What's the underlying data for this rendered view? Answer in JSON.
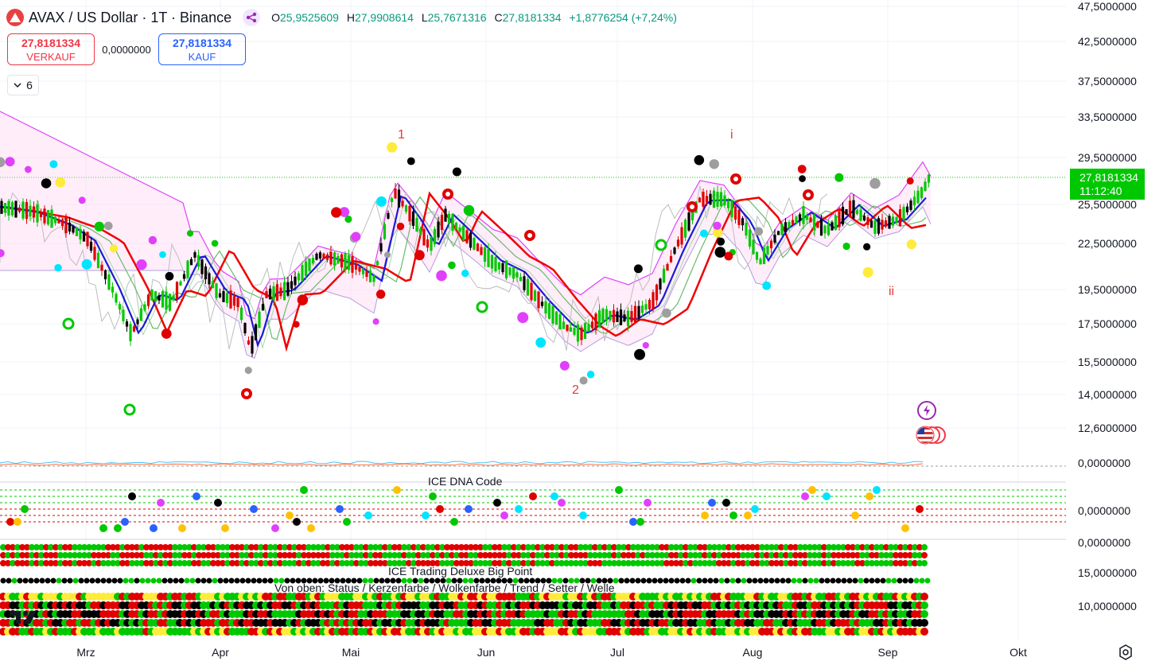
{
  "header": {
    "title": "AVAX / US Dollar · 1T · Binance",
    "ohlc": {
      "o_label": "O",
      "o": "25,9525609",
      "h_label": "H",
      "h": "27,9908614",
      "l_label": "L",
      "l": "25,7671316",
      "c_label": "C",
      "c": "27,8181334",
      "change": "+1,8776254 (+7,24%)"
    }
  },
  "trade": {
    "sell_price": "27,8181334",
    "sell_label": "VERKAUF",
    "spread": "0,0000000",
    "buy_price": "27,8181334",
    "buy_label": "KAUF"
  },
  "indicators_toggle": {
    "count": "6"
  },
  "price_axis": {
    "labels": [
      "47,5000000",
      "42,5000000",
      "37,5000000",
      "33,5000000",
      "29,5000000",
      "25,5000000",
      "22,5000000",
      "19,5000000",
      "17,5000000",
      "15,5000000",
      "14,0000000",
      "12,6000000",
      "0,0000000",
      "0,0000000",
      "0,0000000",
      "15,0000000",
      "10,0000000"
    ],
    "current_price": "27,8181334",
    "countdown": "11:12:40"
  },
  "time_axis": {
    "labels": [
      "Mrz",
      "Apr",
      "Mai",
      "Jun",
      "Jul",
      "Aug",
      "Sep",
      "Okt"
    ]
  },
  "waves": {
    "w1": "1",
    "w2": "2",
    "wi": "i",
    "wii": "ii"
  },
  "indicators": {
    "dna_title": "ICE DNA Code",
    "bigpoint_title": "ICE Trading Deluxe Big Point",
    "bigpoint_subtitle": "Von oben: Status / Kerzenfarbe / Wolkenfarbe / Trend / Setter / Welle"
  },
  "colors": {
    "up": "#00c800",
    "down": "#e00000",
    "ema_red": "#f00000",
    "ema_blue": "#1a1ad6",
    "cloud": "#ffccf2",
    "cloud_line": "#e040fb",
    "price_tag": "#00c800"
  },
  "icons": [
    "avax-logo-icon",
    "share-icon",
    "chevron-down-icon",
    "flash-icon",
    "us-flag-icon",
    "tradingview-logo-icon",
    "settings-icon"
  ]
}
